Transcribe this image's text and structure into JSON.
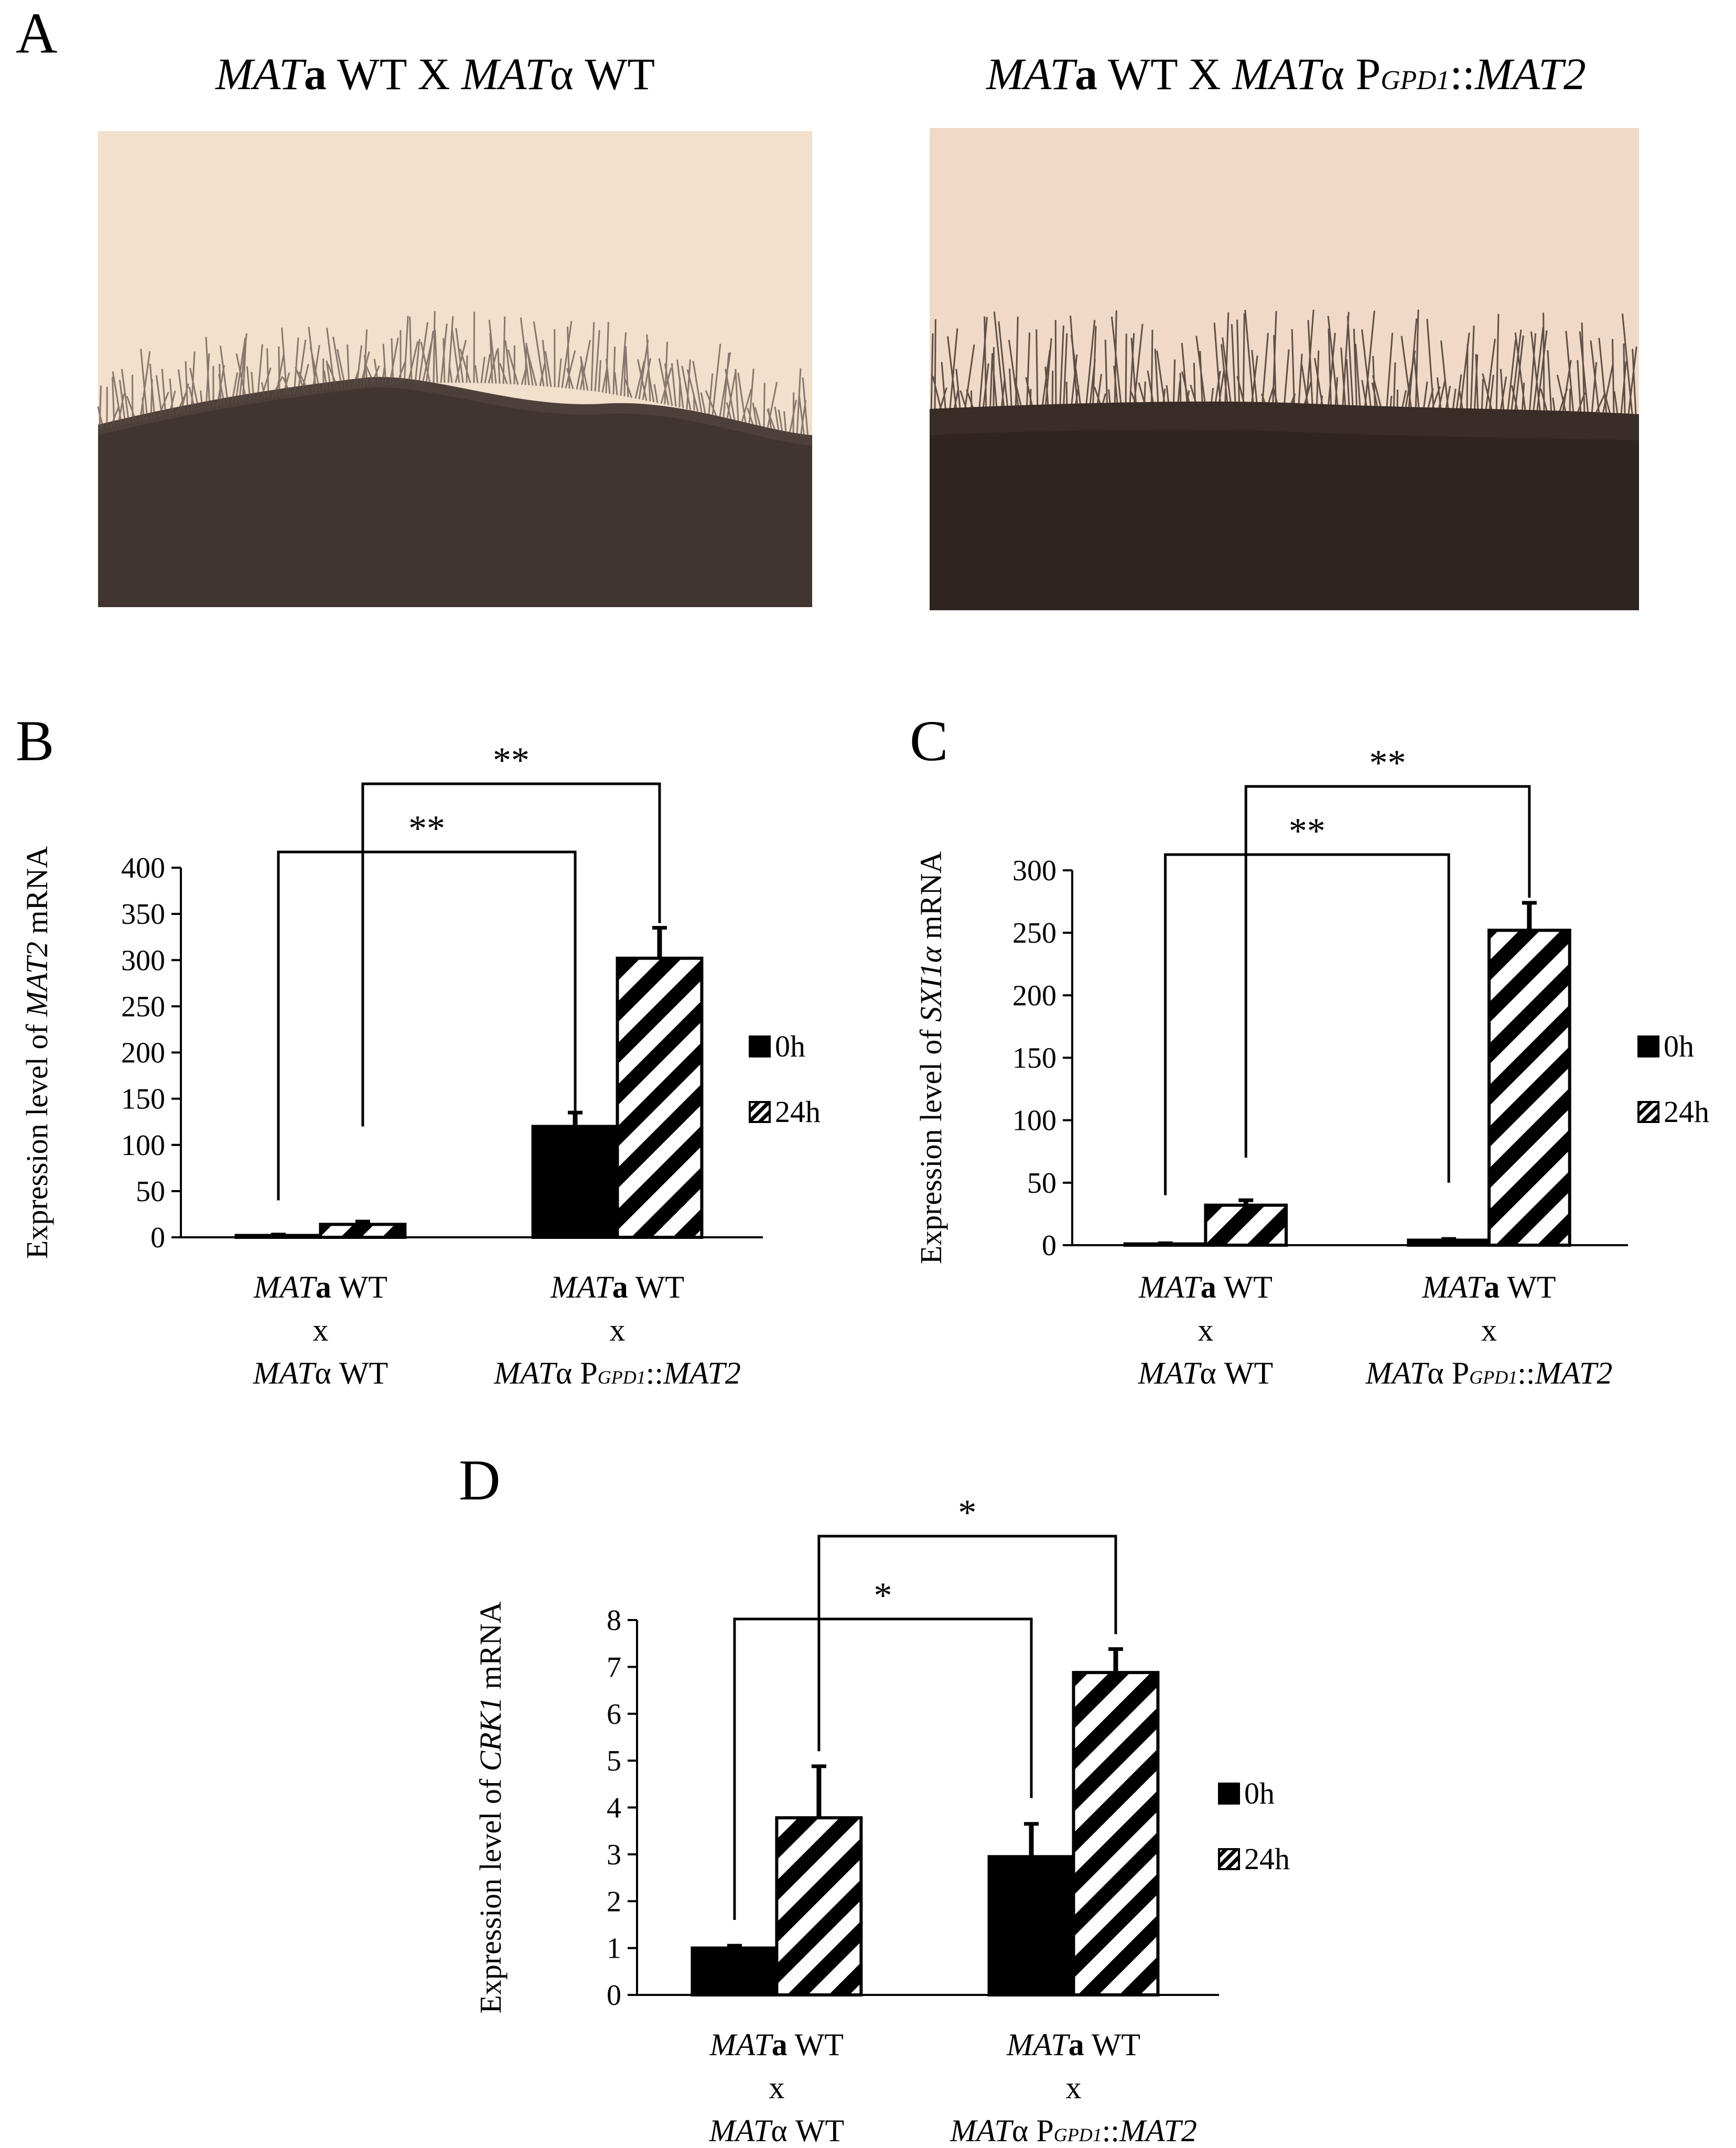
{
  "panel_a": {
    "letter": "A",
    "left_title": [
      {
        "t": "MAT",
        "i": true
      },
      {
        "t": "a",
        "b": true
      },
      {
        "t": " WT X "
      },
      {
        "t": "MAT",
        "i": true
      },
      {
        "t": "α WT"
      }
    ],
    "right_title": [
      {
        "t": "MAT",
        "i": true
      },
      {
        "t": "a",
        "b": true
      },
      {
        "t": " WT X "
      },
      {
        "t": "MAT",
        "i": true
      },
      {
        "t": "α P"
      },
      {
        "t": "GPD1",
        "sub": true,
        "i": true
      },
      {
        "t": "::"
      },
      {
        "t": "MAT2",
        "i": true
      }
    ]
  },
  "colors": {
    "bar_0h": "#000000",
    "bar_24h_stripe": "#000000",
    "background": "#ffffff"
  },
  "chart_data": [
    {
      "letter": "B",
      "type": "bar",
      "ylabel": [
        {
          "t": "Expression level of "
        },
        {
          "t": "MAT2",
          "i": true
        },
        {
          "t": " mRNA"
        }
      ],
      "ylim": [
        0,
        400
      ],
      "yticks": [
        0,
        50,
        100,
        150,
        200,
        250,
        300,
        350,
        400
      ],
      "categories": [
        [
          [
            {
              "t": "MAT",
              "i": true
            },
            {
              "t": "a",
              "b": true
            },
            {
              "t": " WT"
            }
          ],
          [
            {
              "t": "x"
            }
          ],
          [
            {
              "t": "MAT",
              "i": true
            },
            {
              "t": "α WT"
            }
          ]
        ],
        [
          [
            {
              "t": "MAT",
              "i": true
            },
            {
              "t": "a",
              "b": true
            },
            {
              "t": " WT"
            }
          ],
          [
            {
              "t": "x"
            }
          ],
          [
            {
              "t": "MAT",
              "i": true
            },
            {
              "t": "α P"
            },
            {
              "t": "GPD1",
              "sub": true,
              "i": true
            },
            {
              "t": "::"
            },
            {
              "t": "MAT2",
              "i": true
            }
          ]
        ]
      ],
      "series": [
        {
          "name": "0h",
          "values": [
            2,
            120
          ],
          "errors": [
            1,
            15
          ]
        },
        {
          "name": "24h",
          "values": [
            14,
            302
          ],
          "errors": [
            3,
            33
          ]
        }
      ],
      "significance": [
        {
          "label": "**",
          "from": [
            0,
            0
          ],
          "to": [
            1,
            0
          ],
          "rise": [
            40,
            120
          ]
        },
        {
          "label": "**",
          "from": [
            0,
            1
          ],
          "to": [
            1,
            1
          ],
          "rise": [
            120,
            340
          ]
        }
      ]
    },
    {
      "letter": "C",
      "type": "bar",
      "ylabel": [
        {
          "t": "Expression level of "
        },
        {
          "t": "SXI1α",
          "i": true
        },
        {
          "t": " mRNA"
        }
      ],
      "ylim": [
        0,
        300
      ],
      "yticks": [
        0,
        50,
        100,
        150,
        200,
        250,
        300
      ],
      "categories": [
        [
          [
            {
              "t": "MAT",
              "i": true
            },
            {
              "t": "a",
              "b": true
            },
            {
              "t": " WT"
            }
          ],
          [
            {
              "t": "x"
            }
          ],
          [
            {
              "t": "MAT",
              "i": true
            },
            {
              "t": "α WT"
            }
          ]
        ],
        [
          [
            {
              "t": "MAT",
              "i": true
            },
            {
              "t": "a",
              "b": true
            },
            {
              "t": " WT"
            }
          ],
          [
            {
              "t": "x"
            }
          ],
          [
            {
              "t": "MAT",
              "i": true
            },
            {
              "t": "α P"
            },
            {
              "t": "GPD1",
              "sub": true,
              "i": true
            },
            {
              "t": "::"
            },
            {
              "t": "MAT2",
              "i": true
            }
          ]
        ]
      ],
      "series": [
        {
          "name": "0h",
          "values": [
            1,
            4
          ],
          "errors": [
            0.5,
            1
          ]
        },
        {
          "name": "24h",
          "values": [
            32,
            252
          ],
          "errors": [
            4,
            22
          ]
        }
      ],
      "significance": [
        {
          "label": "**",
          "from": [
            0,
            0
          ],
          "to": [
            1,
            0
          ],
          "rise": [
            40,
            50
          ]
        },
        {
          "label": "**",
          "from": [
            0,
            1
          ],
          "to": [
            1,
            1
          ],
          "rise": [
            70,
            278
          ]
        }
      ]
    },
    {
      "letter": "D",
      "type": "bar",
      "ylabel": [
        {
          "t": "Expression level of "
        },
        {
          "t": "CRK1",
          "i": true
        },
        {
          "t": " mRNA"
        }
      ],
      "ylim": [
        0,
        8
      ],
      "yticks": [
        0,
        1,
        2,
        3,
        4,
        5,
        6,
        7,
        8
      ],
      "categories": [
        [
          [
            {
              "t": "MAT",
              "i": true
            },
            {
              "t": "a",
              "b": true
            },
            {
              "t": " WT"
            }
          ],
          [
            {
              "t": "x"
            }
          ],
          [
            {
              "t": "MAT",
              "i": true
            },
            {
              "t": "α WT"
            }
          ]
        ],
        [
          [
            {
              "t": "MAT",
              "i": true
            },
            {
              "t": "a",
              "b": true
            },
            {
              "t": " WT"
            }
          ],
          [
            {
              "t": "x"
            }
          ],
          [
            {
              "t": "MAT",
              "i": true
            },
            {
              "t": "α P"
            },
            {
              "t": "GPD1",
              "sub": true,
              "i": true
            },
            {
              "t": "::"
            },
            {
              "t": "MAT2",
              "i": true
            }
          ]
        ]
      ],
      "series": [
        {
          "name": "0h",
          "values": [
            1,
            2.95
          ],
          "errors": [
            0.05,
            0.7
          ]
        },
        {
          "name": "24h",
          "values": [
            3.78,
            6.88
          ],
          "errors": [
            1.1,
            0.5
          ]
        }
      ],
      "significance": [
        {
          "label": "*",
          "from": [
            0,
            0
          ],
          "to": [
            1,
            0
          ],
          "rise": [
            2.5,
            3.5
          ]
        },
        {
          "label": "*",
          "from": [
            0,
            1
          ],
          "to": [
            1,
            1
          ],
          "rise": [
            6.0,
            7.5
          ]
        }
      ]
    }
  ]
}
